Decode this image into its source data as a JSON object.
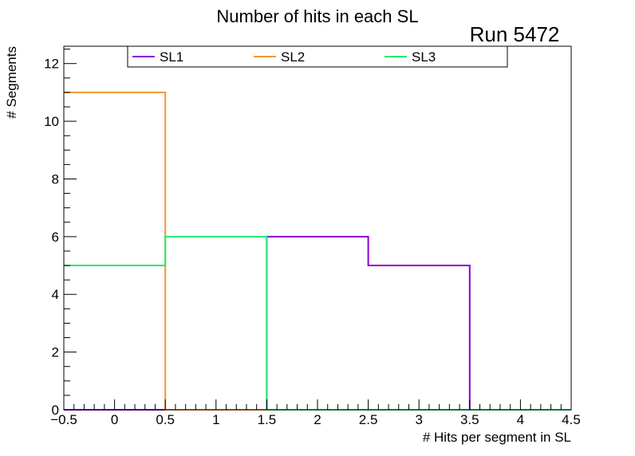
{
  "chart_data": {
    "type": "histogram",
    "title": "Number of hits in each SL",
    "annotation": "Run 5472",
    "xlabel": "# Hits per segment in SL",
    "ylabel": "# Segments",
    "xlim": [
      -0.5,
      4.5
    ],
    "ylim": [
      0,
      12.6
    ],
    "x_ticks": [
      -0.5,
      0,
      0.5,
      1,
      1.5,
      2,
      2.5,
      3,
      3.5,
      4,
      4.5
    ],
    "x_tick_labels": [
      "−0.5",
      "0",
      "0.5",
      "1",
      "1.5",
      "2",
      "2.5",
      "3",
      "3.5",
      "4",
      "4.5"
    ],
    "y_ticks": [
      0,
      2,
      4,
      6,
      8,
      10,
      12
    ],
    "y_tick_labels": [
      "0",
      "2",
      "4",
      "6",
      "8",
      "10",
      "12"
    ],
    "bin_edges": [
      -0.5,
      0.5,
      1.5,
      2.5,
      3.5,
      4.5
    ],
    "grid": false,
    "legend_position": "top",
    "series": [
      {
        "name": "SL1",
        "color": "#8a00d4",
        "values": [
          0,
          0,
          6,
          5,
          0
        ]
      },
      {
        "name": "SL2",
        "color": "#f5962d",
        "values": [
          11,
          0,
          0,
          0,
          0
        ]
      },
      {
        "name": "SL3",
        "color": "#1eeb6e",
        "values": [
          5,
          6,
          0,
          0,
          0
        ]
      }
    ]
  }
}
